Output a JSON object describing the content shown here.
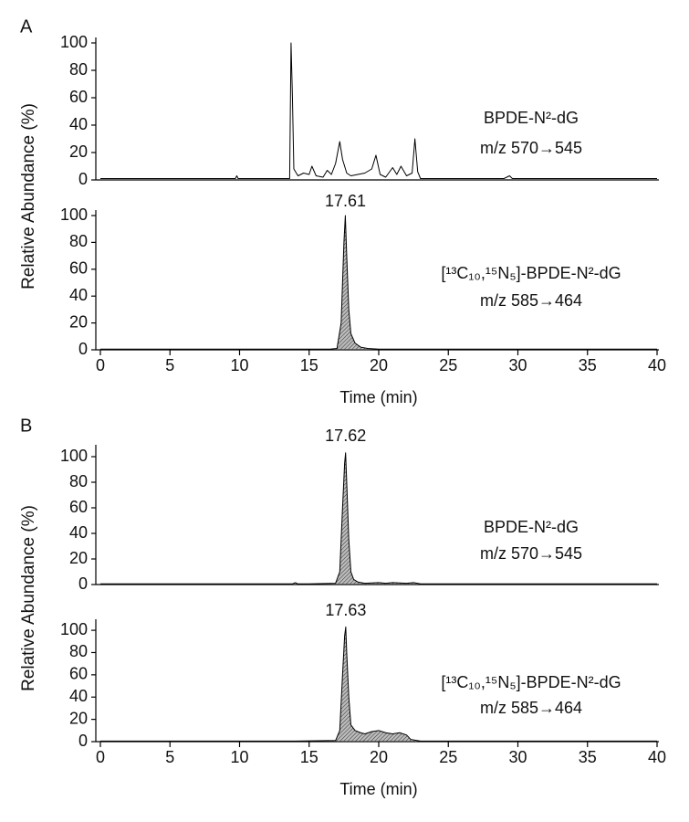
{
  "chart_data": [
    {
      "type": "line",
      "panel": "A",
      "ylabel": "Relative Abundance (%)",
      "annotations": [
        "BPDE-N²-dG",
        "m/z 570→545"
      ],
      "xlim": [
        0,
        40
      ],
      "ylim": [
        0,
        100
      ],
      "yticks": [
        0,
        20,
        40,
        60,
        80,
        100
      ],
      "fill": false,
      "x": [
        0,
        1,
        2,
        3,
        4,
        5,
        6,
        7,
        8,
        9,
        9.7,
        9.8,
        9.9,
        11,
        12,
        13,
        13.5,
        13.6,
        13.7,
        13.8,
        13.9,
        14.2,
        14.6,
        15.0,
        15.2,
        15.5,
        16.0,
        16.3,
        16.6,
        16.9,
        17.2,
        17.4,
        17.7,
        18.0,
        18.5,
        19.0,
        19.5,
        19.8,
        20.1,
        20.5,
        21.0,
        21.3,
        21.6,
        22.0,
        22.4,
        22.6,
        22.8,
        23.0,
        24,
        25,
        26,
        27,
        28,
        29,
        29.4,
        29.6,
        30,
        31,
        32,
        33,
        34,
        35,
        36,
        37,
        38,
        39,
        40
      ],
      "series": [
        {
          "color": "#000000",
          "values": [
            1,
            1,
            1,
            1,
            1,
            1,
            1,
            1,
            1,
            1,
            1,
            3,
            1,
            1,
            1,
            1,
            1,
            1,
            100,
            60,
            8,
            3,
            5,
            4,
            10,
            3,
            2,
            7,
            4,
            12,
            28,
            15,
            5,
            3,
            4,
            5,
            8,
            18,
            4,
            2,
            9,
            4,
            10,
            3,
            5,
            30,
            6,
            1,
            1,
            1,
            1,
            1,
            1,
            1,
            3,
            1,
            1,
            1,
            1,
            1,
            1,
            1,
            1,
            1,
            1,
            1,
            1
          ]
        }
      ]
    },
    {
      "type": "line",
      "annotations": [
        "[¹³C₁₀,¹⁵N₅]-BPDE-N²-dG",
        "m/z 585→464"
      ],
      "peak_label": 17.61,
      "xlabel": "Time (min)",
      "xlim": [
        0,
        40
      ],
      "xticks": [
        0,
        5,
        10,
        15,
        20,
        25,
        30,
        35,
        40
      ],
      "ylim": [
        0,
        100
      ],
      "yticks": [
        0,
        20,
        40,
        60,
        80,
        100
      ],
      "fill": true,
      "x": [
        0,
        5,
        10,
        15,
        16.5,
        17.0,
        17.3,
        17.5,
        17.6,
        17.7,
        17.85,
        18.0,
        18.3,
        18.7,
        19.2,
        20,
        25,
        30,
        35,
        40
      ],
      "series": [
        {
          "color": "#000000",
          "values": [
            0.5,
            0.5,
            0.5,
            0.5,
            0.5,
            1,
            20,
            80,
            100,
            70,
            30,
            12,
            5,
            2,
            1,
            0.5,
            0.5,
            0.5,
            0.5,
            0.5
          ]
        }
      ]
    },
    {
      "type": "line",
      "panel": "B",
      "ylabel": "Relative Abundance (%)",
      "annotations": [
        "BPDE-N²-dG",
        "m/z 570→545"
      ],
      "peak_label": 17.62,
      "xlim": [
        0,
        40
      ],
      "ylim": [
        0,
        105
      ],
      "yticks": [
        0,
        20,
        40,
        60,
        80,
        100
      ],
      "fill": true,
      "x": [
        0,
        5,
        10,
        13.8,
        14,
        14.2,
        15,
        16.9,
        17.2,
        17.4,
        17.55,
        17.62,
        17.7,
        17.85,
        18.0,
        18.2,
        18.5,
        19,
        20,
        20.5,
        21,
        22,
        22.5,
        23,
        25,
        30,
        35,
        40
      ],
      "series": [
        {
          "color": "#000000",
          "values": [
            0.5,
            0.5,
            0.5,
            0.5,
            1.5,
            0.5,
            0.5,
            1,
            10,
            60,
            95,
            103,
            80,
            35,
            10,
            4,
            2,
            1,
            1.5,
            1,
            1.5,
            1,
            1.5,
            0.5,
            0.5,
            0.5,
            0.5,
            0.5
          ]
        }
      ]
    },
    {
      "type": "line",
      "annotations": [
        "[¹³C₁₀,¹⁵N₅]-BPDE-N²-dG",
        "m/z 585→464"
      ],
      "peak_label": 17.63,
      "xlabel": "Time (min)",
      "xlim": [
        0,
        40
      ],
      "xticks": [
        0,
        5,
        10,
        15,
        20,
        25,
        30,
        35,
        40
      ],
      "ylim": [
        0,
        105
      ],
      "yticks": [
        0,
        20,
        40,
        60,
        80,
        100
      ],
      "fill": true,
      "x": [
        0,
        5,
        10,
        14,
        16.9,
        17.2,
        17.4,
        17.55,
        17.63,
        17.7,
        17.85,
        18.0,
        18.3,
        18.7,
        19.0,
        19.5,
        20.0,
        20.5,
        21.0,
        21.5,
        22.0,
        22.3,
        23,
        25,
        30,
        35,
        40
      ],
      "series": [
        {
          "color": "#000000",
          "values": [
            0.5,
            0.5,
            0.5,
            0.5,
            1,
            10,
            60,
            95,
            103,
            80,
            40,
            15,
            10,
            8,
            7,
            9,
            10,
            8,
            7,
            8,
            6,
            2,
            0.5,
            0.5,
            0.5,
            0.5,
            0.5
          ]
        }
      ]
    }
  ]
}
